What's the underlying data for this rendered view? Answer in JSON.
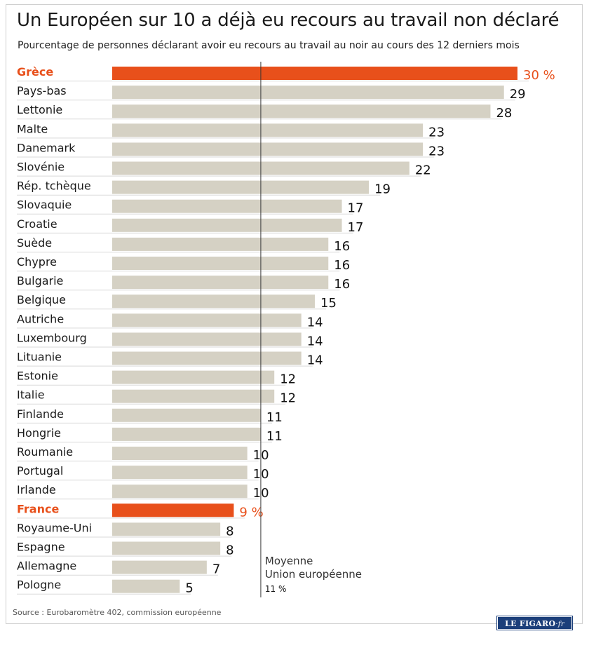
{
  "header": {
    "title": "Un Européen sur 10 a déjà eu recours au travail non déclaré",
    "subtitle": "Pourcentage de personnes déclarant avoir eu recours au travail au noir au cours des 12 derniers mois"
  },
  "chart_data": {
    "type": "bar",
    "orientation": "horizontal",
    "categories": [
      "Grèce",
      "Pays-bas",
      "Lettonie",
      "Malte",
      "Danemark",
      "Slovénie",
      "Rép. tchèque",
      "Slovaquie",
      "Croatie",
      "Suède",
      "Chypre",
      "Bulgarie",
      "Belgique",
      "Autriche",
      "Luxembourg",
      "Lituanie",
      "Estonie",
      "Italie",
      "Finlande",
      "Hongrie",
      "Roumanie",
      "Portugal",
      "Irlande",
      "France",
      "Royaume-Uni",
      "Espagne",
      "Allemagne",
      "Pologne"
    ],
    "values": [
      30,
      29,
      28,
      23,
      23,
      22,
      19,
      17,
      17,
      16,
      16,
      16,
      15,
      14,
      14,
      14,
      12,
      12,
      11,
      11,
      10,
      10,
      10,
      9,
      8,
      8,
      7,
      5
    ],
    "value_labels": [
      "30 %",
      "29",
      "28",
      "23",
      "23",
      "22",
      "19",
      "17",
      "17",
      "16",
      "16",
      "16",
      "15",
      "14",
      "14",
      "14",
      "12",
      "12",
      "11",
      "11",
      "10",
      "10",
      "10",
      "9 %",
      "8",
      "8",
      "7",
      "5"
    ],
    "highlighted": [
      "Grèce",
      "France"
    ],
    "xlim": [
      0,
      30
    ],
    "reference_line": {
      "value": 11,
      "label_line1": "Moyenne",
      "label_line2": "Union européenne",
      "value_label": "11 %"
    },
    "grid": false,
    "legend": "none"
  },
  "colors": {
    "bar_default": "#d5d1c4",
    "bar_highlight": "#e8501b",
    "label_highlight": "#e8501b",
    "row_divider": "#d9d9d9",
    "reference_line": "#333333"
  },
  "footer": {
    "source": "Source : Eurobaromètre 402, commission européenne",
    "logo_main": "LE FIGARO",
    "logo_suffix": "·fr"
  }
}
